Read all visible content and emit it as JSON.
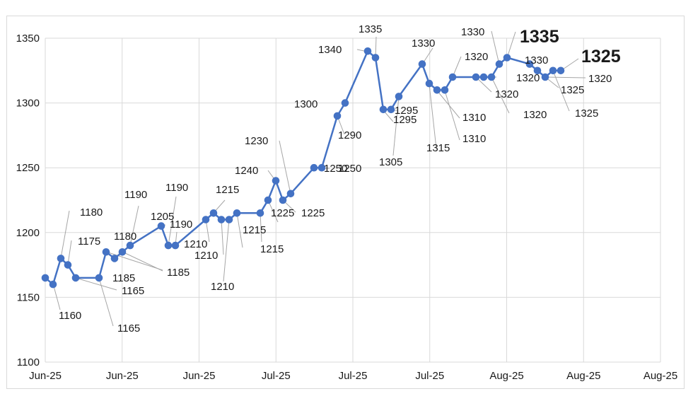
{
  "chart_data": {
    "type": "line",
    "title": "",
    "xlabel": "",
    "ylabel": "",
    "ylim": [
      1100,
      1350
    ],
    "yticks": [
      1100,
      1150,
      1200,
      1250,
      1300,
      1350
    ],
    "xtick_labels": [
      "Jun-25",
      "Jun-25",
      "Jun-25",
      "Jul-25",
      "Jul-25",
      "Jul-25",
      "Aug-25",
      "Aug-25",
      "Aug-25"
    ],
    "grid": true,
    "legend": "none",
    "color": "#4472C4",
    "series": [
      {
        "values": [
          1165,
          1160,
          1180,
          1175,
          1165,
          1165,
          1185,
          1180,
          1185,
          1190,
          1205,
          1190,
          1190,
          1210,
          1215,
          1210,
          1210,
          1215,
          1215,
          1225,
          1240,
          1225,
          1230,
          1250,
          1250,
          1290,
          1300,
          1340,
          1335,
          1295,
          1295,
          1305,
          1330,
          1315,
          1310,
          1310,
          1320,
          1320,
          1320,
          1320,
          1330,
          1335,
          1330,
          1325,
          1320,
          1325,
          1325
        ],
        "labels": [
          "1165",
          "1160",
          "1180",
          "1175",
          "1165",
          "1165",
          "1185",
          "1180",
          "1185",
          "1190",
          "1205",
          "1190",
          "1190",
          "1210",
          "1215",
          "1210",
          "1210",
          "1215",
          "1215",
          "1225",
          "1240",
          "1225",
          "1230",
          "1250",
          "1250",
          "1290",
          "1300",
          "1340",
          "1335",
          "1295",
          "1295",
          "1305",
          "1330",
          "1315",
          "1310",
          "1310",
          "1320",
          "1320",
          "1320",
          "1320",
          "1330",
          "1335",
          "1330",
          "1325",
          "1320",
          "1325",
          "1325"
        ]
      }
    ]
  }
}
